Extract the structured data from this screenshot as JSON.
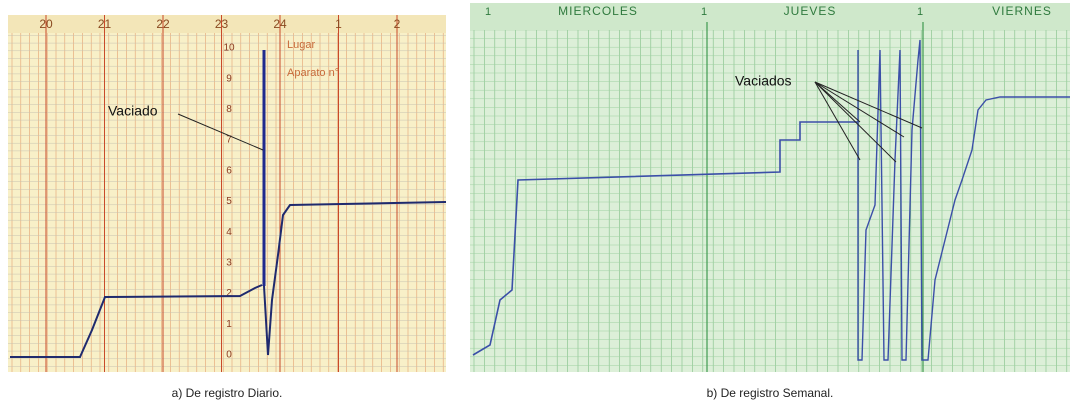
{
  "panels": [
    {
      "caption": "a) De registro Diario.",
      "top_labels": [
        "20",
        "21",
        "22",
        "23",
        "24",
        "1",
        "2"
      ],
      "scale_labels": [
        "10",
        "9",
        "8",
        "7",
        "6",
        "5",
        "4",
        "3",
        "2",
        "1",
        "0"
      ],
      "annotation": "Vaciado",
      "header_fields": [
        "Lugar",
        "Aparato n°"
      ]
    },
    {
      "caption": "b) De registro Semanal.",
      "day_labels": [
        "MIERCOLES",
        "JUEVES",
        "VIERNES"
      ],
      "day_markers": [
        "1",
        "1",
        "1"
      ],
      "annotation": "Vaciados"
    }
  ]
}
